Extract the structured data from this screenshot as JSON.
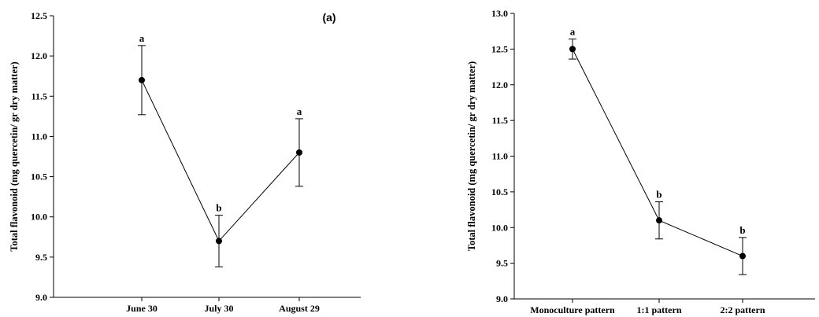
{
  "chart_data": [
    {
      "type": "line",
      "panel_label": "(a)",
      "ylabel": "Total flavonoid (mg quercetin/ gr dry matter)",
      "xlabel": "",
      "categories": [
        "June 30",
        "July 30",
        "August 29"
      ],
      "ylim": [
        9.0,
        12.5
      ],
      "yticks": [
        "9.0",
        "9.5",
        "10.0",
        "10.5",
        "11.0",
        "11.5",
        "12.0",
        "12.5"
      ],
      "grid": false,
      "series": [
        {
          "values": [
            11.7,
            9.7,
            10.8
          ],
          "error": [
            0.43,
            0.32,
            0.42
          ],
          "letters": [
            "a",
            "b",
            "a"
          ]
        }
      ]
    },
    {
      "type": "line",
      "panel_label": "",
      "ylabel": "Total flavonoid (mg quercetin/ gr dry matter)",
      "xlabel": "",
      "categories": [
        "Monoculture pattern",
        "1:1 pattern",
        "2:2 pattern"
      ],
      "ylim": [
        9.0,
        13.0
      ],
      "yticks": [
        "9.0",
        "9.5",
        "10.0",
        "10.5",
        "11.0",
        "11.5",
        "12.0",
        "12.5",
        "13.0"
      ],
      "grid": false,
      "series": [
        {
          "values": [
            12.5,
            10.1,
            9.6
          ],
          "error": [
            0.14,
            0.26,
            0.26
          ],
          "letters": [
            "a",
            "b",
            "b"
          ]
        }
      ]
    }
  ]
}
